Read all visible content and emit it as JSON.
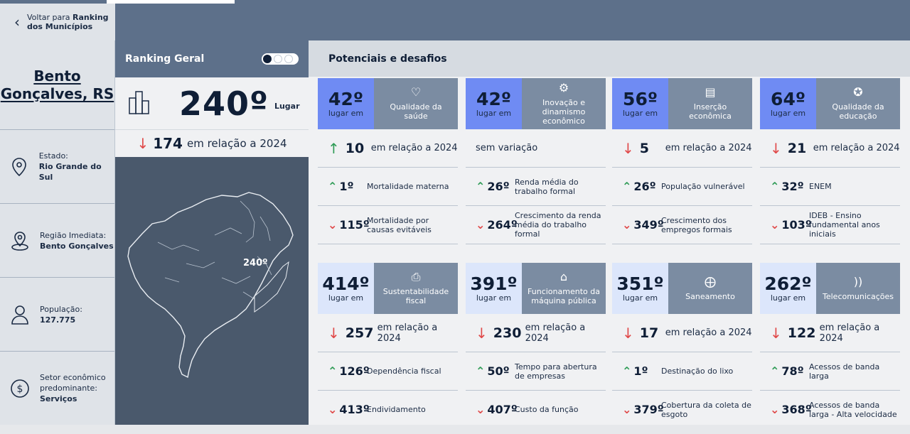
{
  "back": {
    "label": "Voltar para",
    "label_bold": "Ranking dos Municípios"
  },
  "city": {
    "name": "Bento Gonçalves, RS"
  },
  "sidebar": {
    "items": [
      {
        "label": "Estado:",
        "value": "Rio Grande do Sul",
        "icon": "location-pin-icon"
      },
      {
        "label": "Região Imediata:",
        "value": "Bento Gonçalves",
        "icon": "region-pin-icon"
      },
      {
        "label": "População:",
        "value": "127.775",
        "icon": "person-icon"
      },
      {
        "label": "Setor econômico predominante:",
        "value": "Serviços",
        "icon": "dollar-icon"
      }
    ]
  },
  "ranking": {
    "title": "Ranking Geral",
    "position": "240º",
    "position_label": "Lugar",
    "variation": "174",
    "variation_text": "em relação a 2024",
    "map_label": "240º"
  },
  "panel": {
    "title": "Potenciais e desafios"
  },
  "colors": {
    "rank_highlight": "#6f8bf3",
    "rank_light": "#dce6fb",
    "category_bg": "#7b8ca2",
    "up": "#2e9b55",
    "down": "#e04848"
  },
  "cards": [
    {
      "rank": "42º",
      "rank_label": "lugar em",
      "category": "Qualidade da saúde",
      "icon": "health-icon",
      "highlight": true,
      "var_dir": "up",
      "var": "10",
      "var_text": "em relação a 2024",
      "rows": [
        {
          "dir": "up",
          "pos": "1º",
          "label": "Mortalidade materna"
        },
        {
          "dir": "down",
          "pos": "115º",
          "label": "Mortalidade por causas evitáveis"
        }
      ]
    },
    {
      "rank": "42º",
      "rank_label": "lugar em",
      "category": "Inovação e dinamismo econômico",
      "icon": "innovation-icon",
      "highlight": true,
      "var_dir": "none",
      "var": "",
      "var_text": "sem variação",
      "rows": [
        {
          "dir": "up",
          "pos": "26º",
          "label": "Renda média do trabalho formal"
        },
        {
          "dir": "down",
          "pos": "264º",
          "label": "Crescimento da renda média do trabalho formal"
        }
      ]
    },
    {
      "rank": "56º",
      "rank_label": "lugar em",
      "category": "Inserção econômica",
      "icon": "money-icon",
      "highlight": true,
      "var_dir": "down",
      "var": "5",
      "var_text": "em relação a 2024",
      "rows": [
        {
          "dir": "up",
          "pos": "26º",
          "label": "População vulnerável"
        },
        {
          "dir": "down",
          "pos": "349º",
          "label": "Crescimento dos empregos formais"
        }
      ]
    },
    {
      "rank": "64º",
      "rank_label": "lugar em",
      "category": "Qualidade da educação",
      "icon": "education-icon",
      "highlight": true,
      "var_dir": "down",
      "var": "21",
      "var_text": "em relação a 2024",
      "rows": [
        {
          "dir": "up",
          "pos": "32º",
          "label": "ENEM"
        },
        {
          "dir": "down",
          "pos": "103º",
          "label": "IDEB - Ensino fundamental anos iniciais"
        }
      ]
    },
    {
      "rank": "414º",
      "rank_label": "lugar em",
      "category": "Sustentabilidade fiscal",
      "icon": "document-icon",
      "highlight": false,
      "var_dir": "down",
      "var": "257",
      "var_text": "em relação a 2024",
      "rows": [
        {
          "dir": "up",
          "pos": "126º",
          "label": "Dependência fiscal"
        },
        {
          "dir": "down",
          "pos": "413º",
          "label": "Endividamento"
        }
      ]
    },
    {
      "rank": "391º",
      "rank_label": "lugar em",
      "category": "Funcionamento da máquina pública",
      "icon": "institution-icon",
      "highlight": false,
      "var_dir": "down",
      "var": "230",
      "var_text": "em relação a 2024",
      "rows": [
        {
          "dir": "up",
          "pos": "50º",
          "label": "Tempo para abertura de empresas"
        },
        {
          "dir": "down",
          "pos": "407º",
          "label": "Custo da função"
        }
      ]
    },
    {
      "rank": "351º",
      "rank_label": "lugar em",
      "category": "Saneamento",
      "icon": "faucet-icon",
      "highlight": false,
      "var_dir": "down",
      "var": "17",
      "var_text": "em relação a 2024",
      "rows": [
        {
          "dir": "up",
          "pos": "1º",
          "label": "Destinação do lixo"
        },
        {
          "dir": "down",
          "pos": "379º",
          "label": "Cobertura da coleta de esgoto"
        }
      ]
    },
    {
      "rank": "262º",
      "rank_label": "lugar em",
      "category": "Telecomunicações",
      "icon": "signal-icon",
      "highlight": false,
      "var_dir": "down",
      "var": "122",
      "var_text": "em relação a 2024",
      "rows": [
        {
          "dir": "up",
          "pos": "78º",
          "label": "Acessos de banda larga"
        },
        {
          "dir": "down",
          "pos": "368º",
          "label": "Acessos de banda larga - Alta velocidade"
        }
      ]
    }
  ]
}
